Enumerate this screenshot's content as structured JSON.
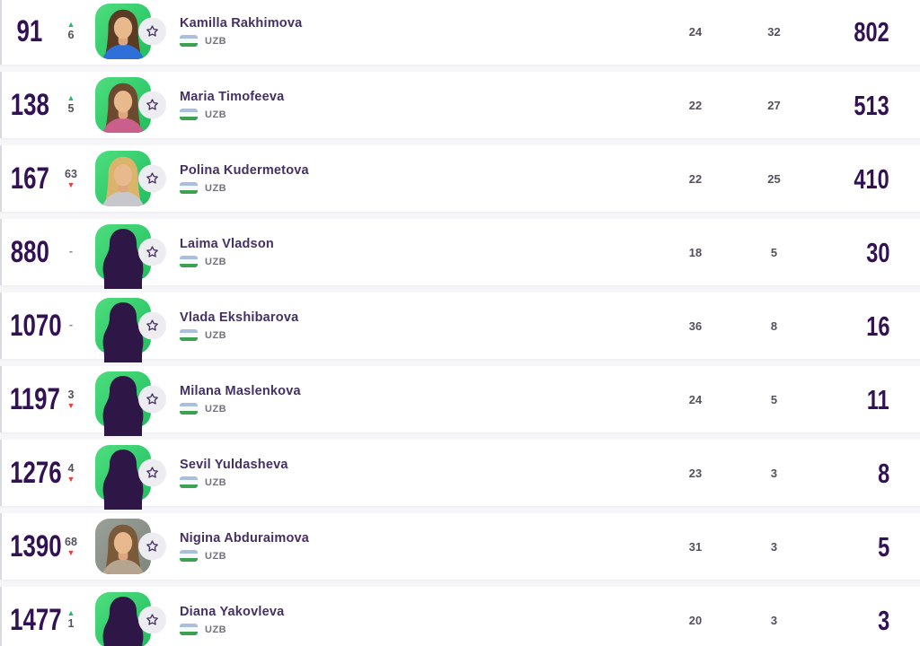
{
  "colors": {
    "accent_green": "#2ab56f",
    "accent_red": "#e8403a",
    "rank_text": "#321253",
    "points_text": "#321253",
    "name_text": "#443063",
    "stat_text": "#55505c",
    "row_bg": "#ffffff",
    "page_bg": "#f6f6f8",
    "avatar_green": "#2cc868",
    "avatar_grey": "#8a9188",
    "silhouette": "#2e1647",
    "star_circle_bg": "#ececf1",
    "flag_top": "#a9bfdd",
    "flag_mid": "#f6f8fa",
    "flag_bottom": "#3da052"
  },
  "icons": {
    "up_triangle": "▲",
    "down_triangle": "▼",
    "no_change_dash": "-",
    "star": "star-outline"
  },
  "table": {
    "rows": [
      {
        "rank": "91",
        "change_dir": "up",
        "change_value": "6",
        "name": "Kamilla Rakhimova",
        "country": "UZB",
        "avatar": "photo",
        "avatar_bg": "green",
        "hair": "#5a3b23",
        "shirt": "#2f6fd8",
        "stat1": "24",
        "stat2": "32",
        "points": "802"
      },
      {
        "rank": "138",
        "change_dir": "up",
        "change_value": "5",
        "name": "Maria Timofeeva",
        "country": "UZB",
        "avatar": "photo",
        "avatar_bg": "green",
        "hair": "#6b4a2f",
        "shirt": "#c95f8a",
        "stat1": "22",
        "stat2": "27",
        "points": "513"
      },
      {
        "rank": "167",
        "change_dir": "down",
        "change_value": "63",
        "name": "Polina Kudermetova",
        "country": "UZB",
        "avatar": "photo",
        "avatar_bg": "green",
        "hair": "#d9b46a",
        "shirt": "#c8c8cc",
        "stat1": "22",
        "stat2": "25",
        "points": "410"
      },
      {
        "rank": "880",
        "change_dir": "none",
        "change_value": "-",
        "name": "Laima Vladson",
        "country": "UZB",
        "avatar": "silhouette",
        "avatar_bg": "green",
        "stat1": "18",
        "stat2": "5",
        "points": "30"
      },
      {
        "rank": "1070",
        "change_dir": "none",
        "change_value": "-",
        "name": "Vlada Ekshibarova",
        "country": "UZB",
        "avatar": "silhouette",
        "avatar_bg": "green",
        "stat1": "36",
        "stat2": "8",
        "points": "16"
      },
      {
        "rank": "1197",
        "change_dir": "down",
        "change_value": "3",
        "name": "Milana Maslenkova",
        "country": "UZB",
        "avatar": "silhouette",
        "avatar_bg": "green",
        "stat1": "24",
        "stat2": "5",
        "points": "11"
      },
      {
        "rank": "1276",
        "change_dir": "down",
        "change_value": "4",
        "name": "Sevil Yuldasheva",
        "country": "UZB",
        "avatar": "silhouette",
        "avatar_bg": "green",
        "stat1": "23",
        "stat2": "3",
        "points": "8"
      },
      {
        "rank": "1390",
        "change_dir": "down",
        "change_value": "68",
        "name": "Nigina Abduraimova",
        "country": "UZB",
        "avatar": "photo",
        "avatar_bg": "grey",
        "hair": "#7a5a38",
        "shirt": "#b5a58f",
        "stat1": "31",
        "stat2": "3",
        "points": "5"
      },
      {
        "rank": "1477",
        "change_dir": "up",
        "change_value": "1",
        "name": "Diana Yakovleva",
        "country": "UZB",
        "avatar": "silhouette",
        "avatar_bg": "green",
        "stat1": "20",
        "stat2": "3",
        "points": "3"
      }
    ]
  }
}
